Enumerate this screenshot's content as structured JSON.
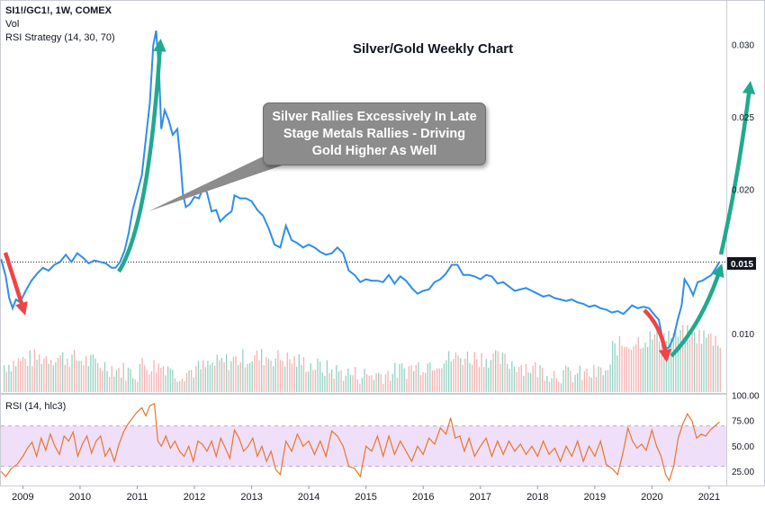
{
  "header": {
    "symbol": "SI1!/GC1!, 1W, COMEX",
    "vol_label": "Vol",
    "strategy_label": "RSI Strategy (14, 30, 70)"
  },
  "chart_title": "Silver/Gold Weekly Chart",
  "callout_text": "Silver Rallies Excessively In Late Stage Metals Rallies - Driving Gold Higher As Well",
  "rsi_label": "RSI (14, hlc3)",
  "last_price_label": "0.015",
  "colors": {
    "price_line": "#2f8ee8",
    "rsi_line": "#e8762d",
    "rsi_band": "#eedcf7",
    "vol_up": "#7fcab8",
    "vol_down": "#f4a3a3",
    "arrow_up": "#21a98f",
    "arrow_down": "#ee4545",
    "last_price_bg": "#131722"
  },
  "chart_data": [
    {
      "type": "line",
      "name": "price",
      "x_ticks": [
        "2009",
        "2010",
        "2011",
        "2012",
        "2013",
        "2014",
        "2015",
        "2016",
        "2017",
        "2018",
        "2019",
        "2020",
        "2021"
      ],
      "y_ticks": [
        "0.010",
        "0.015",
        "0.020",
        "0.025",
        "0.030"
      ],
      "ylim": [
        0.006,
        0.033
      ],
      "xlim": [
        2008.6,
        2021.3
      ],
      "last_value": 0.015,
      "points": [
        [
          2008.62,
          0.0152
        ],
        [
          2008.7,
          0.014
        ],
        [
          2008.76,
          0.0125
        ],
        [
          2008.82,
          0.0118
        ],
        [
          2008.88,
          0.0124
        ],
        [
          2008.95,
          0.0122
        ],
        [
          2009.05,
          0.013
        ],
        [
          2009.15,
          0.0137
        ],
        [
          2009.25,
          0.0142
        ],
        [
          2009.35,
          0.0146
        ],
        [
          2009.45,
          0.0144
        ],
        [
          2009.55,
          0.0148
        ],
        [
          2009.65,
          0.015
        ],
        [
          2009.75,
          0.0155
        ],
        [
          2009.85,
          0.015
        ],
        [
          2009.95,
          0.0156
        ],
        [
          2010.05,
          0.0153
        ],
        [
          2010.15,
          0.0149
        ],
        [
          2010.25,
          0.0151
        ],
        [
          2010.35,
          0.015
        ],
        [
          2010.45,
          0.0149
        ],
        [
          2010.55,
          0.0146
        ],
        [
          2010.62,
          0.0146
        ],
        [
          2010.7,
          0.015
        ],
        [
          2010.78,
          0.0158
        ],
        [
          2010.85,
          0.017
        ],
        [
          2010.92,
          0.0186
        ],
        [
          2011.0,
          0.0198
        ],
        [
          2011.08,
          0.021
        ],
        [
          2011.15,
          0.0235
        ],
        [
          2011.22,
          0.026
        ],
        [
          2011.28,
          0.03
        ],
        [
          2011.33,
          0.031
        ],
        [
          2011.38,
          0.0282
        ],
        [
          2011.42,
          0.0242
        ],
        [
          2011.48,
          0.0255
        ],
        [
          2011.55,
          0.0248
        ],
        [
          2011.62,
          0.0238
        ],
        [
          2011.7,
          0.0242
        ],
        [
          2011.75,
          0.0222
        ],
        [
          2011.8,
          0.0197
        ],
        [
          2011.85,
          0.0188
        ],
        [
          2011.92,
          0.019
        ],
        [
          2012.0,
          0.0195
        ],
        [
          2012.08,
          0.0194
        ],
        [
          2012.16,
          0.0202
        ],
        [
          2012.22,
          0.0198
        ],
        [
          2012.3,
          0.0185
        ],
        [
          2012.38,
          0.0186
        ],
        [
          2012.45,
          0.0178
        ],
        [
          2012.55,
          0.0182
        ],
        [
          2012.65,
          0.0185
        ],
        [
          2012.7,
          0.0196
        ],
        [
          2012.8,
          0.0194
        ],
        [
          2012.9,
          0.0194
        ],
        [
          2013.0,
          0.0192
        ],
        [
          2013.1,
          0.0186
        ],
        [
          2013.2,
          0.0182
        ],
        [
          2013.3,
          0.0173
        ],
        [
          2013.4,
          0.0162
        ],
        [
          2013.5,
          0.016
        ],
        [
          2013.6,
          0.0175
        ],
        [
          2013.7,
          0.0165
        ],
        [
          2013.8,
          0.0163
        ],
        [
          2013.9,
          0.016
        ],
        [
          2014.0,
          0.0162
        ],
        [
          2014.1,
          0.016
        ],
        [
          2014.2,
          0.0157
        ],
        [
          2014.3,
          0.0155
        ],
        [
          2014.4,
          0.0156
        ],
        [
          2014.5,
          0.016
        ],
        [
          2014.6,
          0.0156
        ],
        [
          2014.7,
          0.0144
        ],
        [
          2014.8,
          0.0141
        ],
        [
          2014.9,
          0.0136
        ],
        [
          2015.0,
          0.0138
        ],
        [
          2015.1,
          0.0137
        ],
        [
          2015.2,
          0.0137
        ],
        [
          2015.3,
          0.0136
        ],
        [
          2015.4,
          0.0141
        ],
        [
          2015.5,
          0.0135
        ],
        [
          2015.6,
          0.014
        ],
        [
          2015.7,
          0.0137
        ],
        [
          2015.8,
          0.0132
        ],
        [
          2015.9,
          0.0128
        ],
        [
          2016.0,
          0.013
        ],
        [
          2016.1,
          0.0131
        ],
        [
          2016.2,
          0.0136
        ],
        [
          2016.3,
          0.0138
        ],
        [
          2016.4,
          0.0142
        ],
        [
          2016.5,
          0.0148
        ],
        [
          2016.6,
          0.0148
        ],
        [
          2016.7,
          0.0141
        ],
        [
          2016.8,
          0.0141
        ],
        [
          2016.9,
          0.014
        ],
        [
          2017.0,
          0.0138
        ],
        [
          2017.1,
          0.0141
        ],
        [
          2017.2,
          0.014
        ],
        [
          2017.3,
          0.0135
        ],
        [
          2017.4,
          0.0136
        ],
        [
          2017.5,
          0.0133
        ],
        [
          2017.6,
          0.013
        ],
        [
          2017.7,
          0.0131
        ],
        [
          2017.8,
          0.0132
        ],
        [
          2017.9,
          0.013
        ],
        [
          2018.0,
          0.0128
        ],
        [
          2018.1,
          0.0126
        ],
        [
          2018.2,
          0.0127
        ],
        [
          2018.3,
          0.0125
        ],
        [
          2018.4,
          0.0124
        ],
        [
          2018.5,
          0.0123
        ],
        [
          2018.6,
          0.0124
        ],
        [
          2018.7,
          0.0122
        ],
        [
          2018.8,
          0.0121
        ],
        [
          2018.9,
          0.0119
        ],
        [
          2019.0,
          0.012
        ],
        [
          2019.1,
          0.0118
        ],
        [
          2019.2,
          0.0117
        ],
        [
          2019.3,
          0.0115
        ],
        [
          2019.4,
          0.0116
        ],
        [
          2019.5,
          0.0114
        ],
        [
          2019.58,
          0.0117
        ],
        [
          2019.65,
          0.012
        ],
        [
          2019.75,
          0.0118
        ],
        [
          2019.85,
          0.0119
        ],
        [
          2019.95,
          0.0118
        ],
        [
          2020.05,
          0.0113
        ],
        [
          2020.12,
          0.011
        ],
        [
          2020.18,
          0.0098
        ],
        [
          2020.24,
          0.009
        ],
        [
          2020.3,
          0.0091
        ],
        [
          2020.38,
          0.0098
        ],
        [
          2020.45,
          0.011
        ],
        [
          2020.52,
          0.012
        ],
        [
          2020.57,
          0.0138
        ],
        [
          2020.65,
          0.0133
        ],
        [
          2020.72,
          0.0127
        ],
        [
          2020.8,
          0.0136
        ],
        [
          2020.88,
          0.0137
        ],
        [
          2020.96,
          0.0139
        ],
        [
          2021.04,
          0.0141
        ],
        [
          2021.12,
          0.0146
        ],
        [
          2021.18,
          0.015
        ]
      ]
    },
    {
      "type": "line",
      "name": "rsi",
      "y_ticks": [
        "25.00",
        "50.00",
        "75.00",
        "100.00"
      ],
      "ylim": [
        12,
        100
      ],
      "band": [
        30,
        70
      ],
      "points": [
        [
          2008.62,
          25
        ],
        [
          2008.7,
          20
        ],
        [
          2008.8,
          28
        ],
        [
          2008.9,
          32
        ],
        [
          2009.0,
          40
        ],
        [
          2009.08,
          48
        ],
        [
          2009.16,
          54
        ],
        [
          2009.24,
          40
        ],
        [
          2009.32,
          58
        ],
        [
          2009.4,
          46
        ],
        [
          2009.48,
          62
        ],
        [
          2009.56,
          50
        ],
        [
          2009.64,
          42
        ],
        [
          2009.72,
          60
        ],
        [
          2009.8,
          55
        ],
        [
          2009.88,
          64
        ],
        [
          2009.96,
          40
        ],
        [
          2010.04,
          52
        ],
        [
          2010.12,
          60
        ],
        [
          2010.2,
          43
        ],
        [
          2010.28,
          55
        ],
        [
          2010.36,
          60
        ],
        [
          2010.44,
          40
        ],
        [
          2010.52,
          48
        ],
        [
          2010.6,
          35
        ],
        [
          2010.68,
          52
        ],
        [
          2010.76,
          64
        ],
        [
          2010.84,
          72
        ],
        [
          2010.92,
          78
        ],
        [
          2011.0,
          84
        ],
        [
          2011.08,
          88
        ],
        [
          2011.15,
          80
        ],
        [
          2011.22,
          90
        ],
        [
          2011.3,
          92
        ],
        [
          2011.36,
          55
        ],
        [
          2011.42,
          50
        ],
        [
          2011.5,
          60
        ],
        [
          2011.58,
          48
        ],
        [
          2011.66,
          55
        ],
        [
          2011.74,
          45
        ],
        [
          2011.82,
          40
        ],
        [
          2011.9,
          50
        ],
        [
          2011.98,
          35
        ],
        [
          2012.06,
          55
        ],
        [
          2012.14,
          52
        ],
        [
          2012.22,
          45
        ],
        [
          2012.3,
          55
        ],
        [
          2012.38,
          40
        ],
        [
          2012.46,
          58
        ],
        [
          2012.54,
          48
        ],
        [
          2012.62,
          38
        ],
        [
          2012.7,
          66
        ],
        [
          2012.78,
          58
        ],
        [
          2012.86,
          45
        ],
        [
          2012.94,
          50
        ],
        [
          2013.02,
          58
        ],
        [
          2013.1,
          40
        ],
        [
          2013.18,
          50
        ],
        [
          2013.26,
          35
        ],
        [
          2013.34,
          45
        ],
        [
          2013.42,
          27
        ],
        [
          2013.5,
          22
        ],
        [
          2013.6,
          55
        ],
        [
          2013.7,
          45
        ],
        [
          2013.8,
          62
        ],
        [
          2013.9,
          50
        ],
        [
          2014.0,
          55
        ],
        [
          2014.1,
          42
        ],
        [
          2014.2,
          55
        ],
        [
          2014.3,
          40
        ],
        [
          2014.4,
          65
        ],
        [
          2014.5,
          60
        ],
        [
          2014.6,
          50
        ],
        [
          2014.7,
          30
        ],
        [
          2014.8,
          28
        ],
        [
          2014.9,
          20
        ],
        [
          2015.0,
          50
        ],
        [
          2015.1,
          45
        ],
        [
          2015.2,
          60
        ],
        [
          2015.3,
          40
        ],
        [
          2015.4,
          60
        ],
        [
          2015.5,
          42
        ],
        [
          2015.6,
          55
        ],
        [
          2015.7,
          45
        ],
        [
          2015.8,
          35
        ],
        [
          2015.9,
          50
        ],
        [
          2016.0,
          42
        ],
        [
          2016.1,
          58
        ],
        [
          2016.2,
          52
        ],
        [
          2016.3,
          68
        ],
        [
          2016.4,
          62
        ],
        [
          2016.48,
          78
        ],
        [
          2016.56,
          58
        ],
        [
          2016.64,
          60
        ],
        [
          2016.72,
          45
        ],
        [
          2016.8,
          58
        ],
        [
          2016.9,
          40
        ],
        [
          2017.0,
          50
        ],
        [
          2017.1,
          58
        ],
        [
          2017.2,
          40
        ],
        [
          2017.3,
          55
        ],
        [
          2017.4,
          42
        ],
        [
          2017.5,
          55
        ],
        [
          2017.6,
          45
        ],
        [
          2017.7,
          52
        ],
        [
          2017.8,
          42
        ],
        [
          2017.9,
          50
        ],
        [
          2018.0,
          40
        ],
        [
          2018.1,
          55
        ],
        [
          2018.2,
          42
        ],
        [
          2018.3,
          48
        ],
        [
          2018.4,
          35
        ],
        [
          2018.5,
          50
        ],
        [
          2018.6,
          40
        ],
        [
          2018.7,
          55
        ],
        [
          2018.8,
          35
        ],
        [
          2018.9,
          50
        ],
        [
          2019.0,
          40
        ],
        [
          2019.1,
          55
        ],
        [
          2019.2,
          32
        ],
        [
          2019.3,
          28
        ],
        [
          2019.4,
          22
        ],
        [
          2019.5,
          45
        ],
        [
          2019.58,
          68
        ],
        [
          2019.66,
          55
        ],
        [
          2019.74,
          48
        ],
        [
          2019.82,
          52
        ],
        [
          2019.9,
          46
        ],
        [
          2020.0,
          66
        ],
        [
          2020.08,
          50
        ],
        [
          2020.16,
          40
        ],
        [
          2020.24,
          22
        ],
        [
          2020.3,
          16
        ],
        [
          2020.38,
          30
        ],
        [
          2020.46,
          58
        ],
        [
          2020.54,
          72
        ],
        [
          2020.62,
          82
        ],
        [
          2020.7,
          75
        ],
        [
          2020.78,
          58
        ],
        [
          2020.86,
          62
        ],
        [
          2020.94,
          60
        ],
        [
          2021.02,
          66
        ],
        [
          2021.1,
          70
        ],
        [
          2021.18,
          74
        ]
      ]
    }
  ]
}
